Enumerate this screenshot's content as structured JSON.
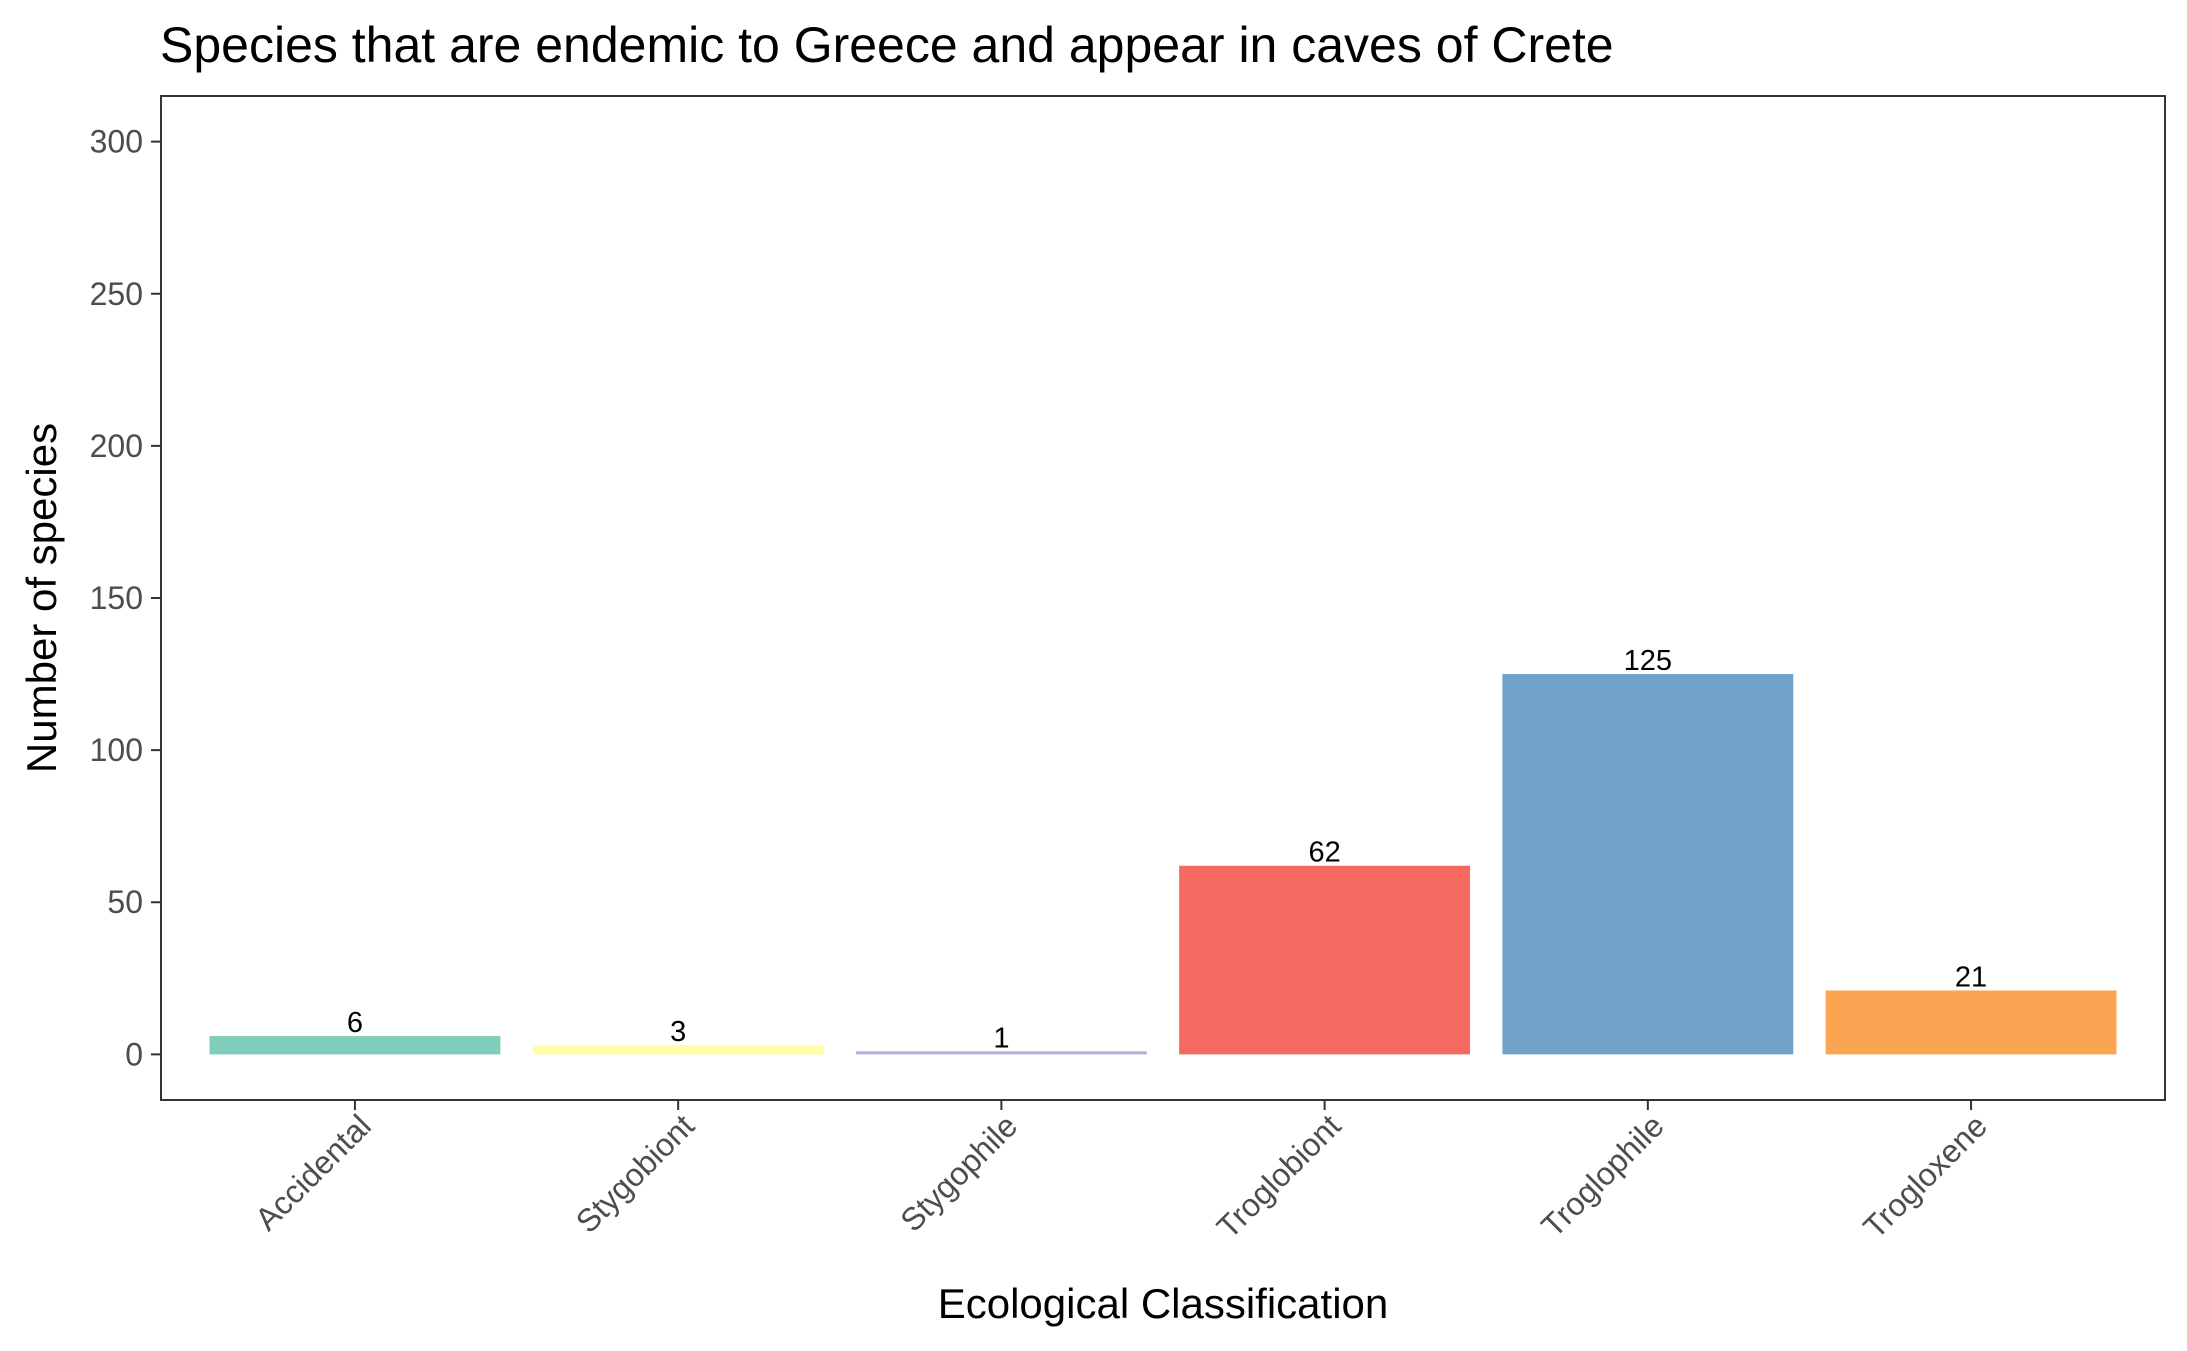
{
  "chart_data": {
    "type": "bar",
    "title": "Species that are endemic to Greece and appear in caves of Crete",
    "xlabel": "Ecological Classification",
    "ylabel": "Number of species",
    "categories": [
      "Accidental",
      "Stygobiont",
      "Stygophile",
      "Troglobiont",
      "Troglophile",
      "Trogloxene"
    ],
    "values": [
      6,
      3,
      1,
      62,
      125,
      21
    ],
    "data_labels": [
      "6",
      "3",
      "1",
      "62",
      "125",
      "21"
    ],
    "colors": [
      "#7fcdbb",
      "#ffffa8",
      "#b3b0da",
      "#f46a60",
      "#6fa1c9",
      "#fba552"
    ],
    "ylim": [
      -15,
      315
    ],
    "yticks": [
      0,
      50,
      100,
      150,
      200,
      250,
      300
    ],
    "ytick_labels": [
      "0",
      "50",
      "100",
      "150",
      "200",
      "250",
      "300"
    ],
    "grid": false,
    "legend": "none"
  }
}
